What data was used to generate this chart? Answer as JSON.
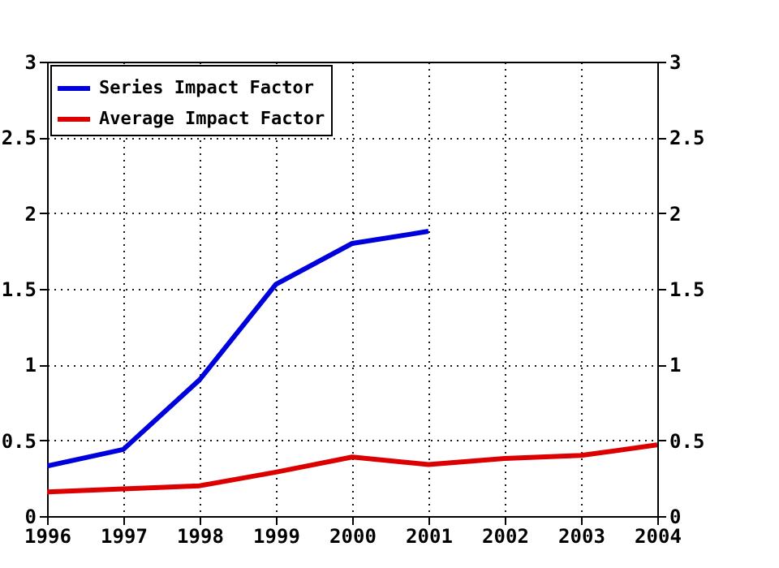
{
  "chart_data": {
    "type": "line",
    "x": [
      1996,
      1997,
      1998,
      1999,
      2000,
      2001,
      2002,
      2003,
      2004
    ],
    "series": [
      {
        "name": "Series Impact Factor",
        "color": "#0000dd",
        "values": [
          0.33,
          0.44,
          0.9,
          1.53,
          1.8,
          1.88,
          null,
          null,
          null
        ]
      },
      {
        "name": "Average Impact Factor",
        "color": "#dd0000",
        "values": [
          0.16,
          0.18,
          0.2,
          0.29,
          0.39,
          0.34,
          0.38,
          0.4,
          0.47
        ]
      }
    ],
    "xlim": [
      1996,
      2004
    ],
    "xticks": [
      1996,
      1997,
      1998,
      1999,
      2000,
      2001,
      2002,
      2003,
      2004
    ],
    "ylim": [
      0,
      3
    ],
    "yticks": [
      0,
      0.5,
      1,
      1.5,
      2,
      2.5,
      3
    ],
    "y2lim": [
      0,
      3
    ],
    "y2ticks": [
      0,
      0.5,
      1,
      1.5,
      2,
      2.5,
      3
    ],
    "grid": true,
    "legend": "top left",
    "line_style": "solid"
  }
}
